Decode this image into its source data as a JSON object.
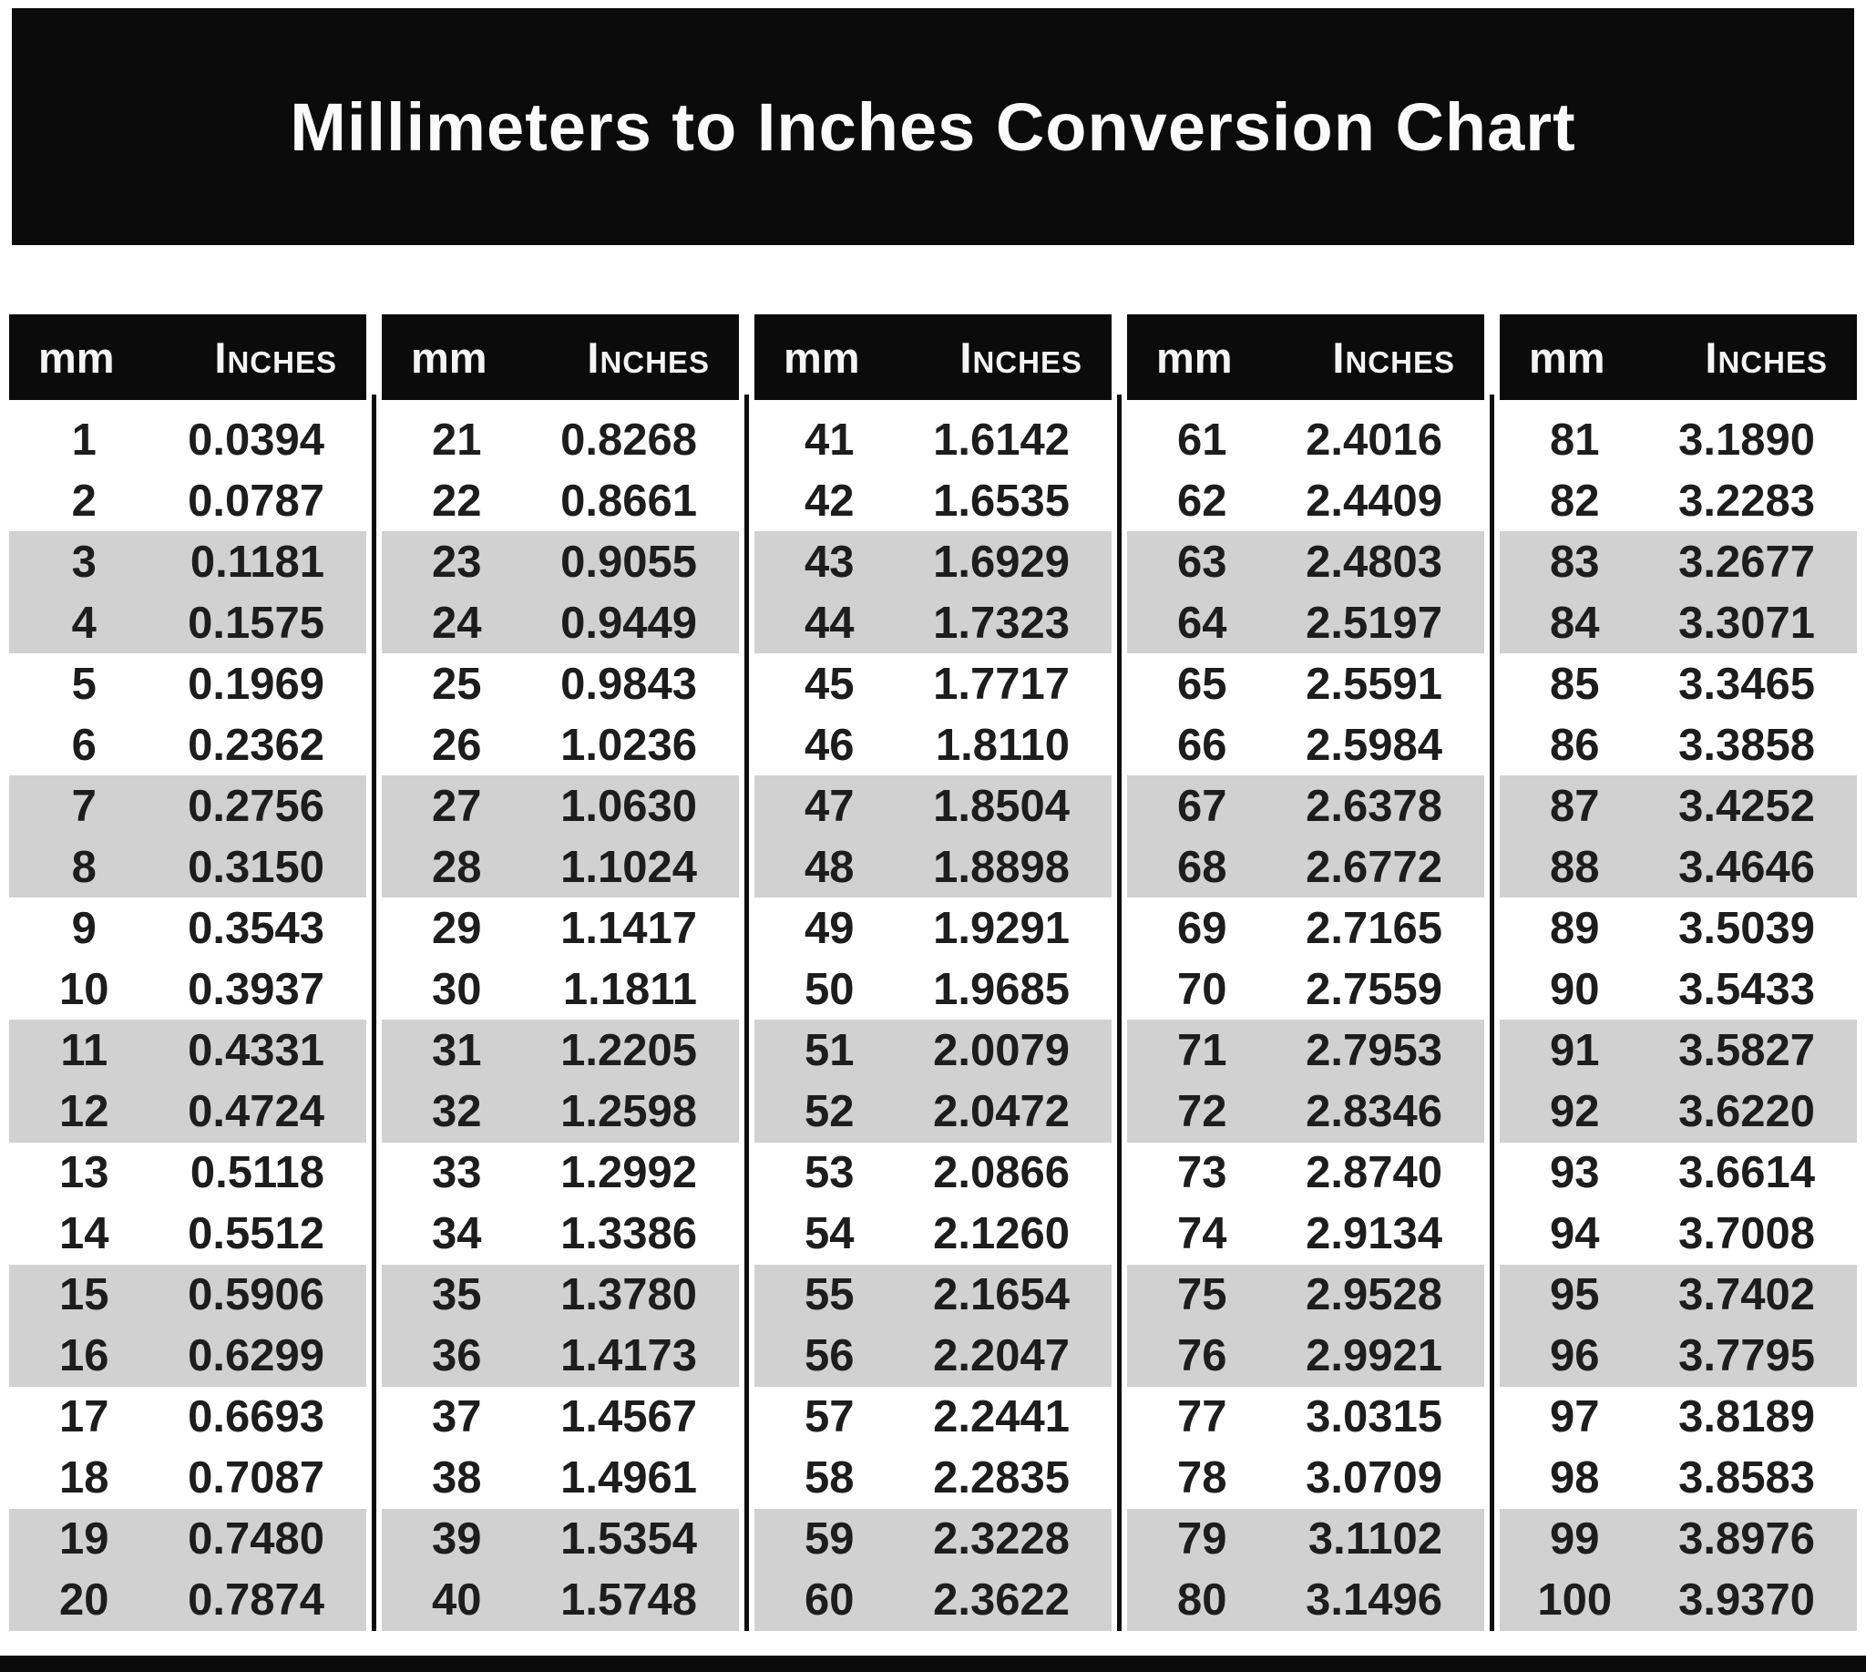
{
  "title": "Millimeters to Inches Conversion Chart",
  "column_headers": {
    "mm": "mm",
    "inches": "Inches"
  },
  "colors": {
    "header_bg": "#0b0b0b",
    "row_band": "#d1d1d1",
    "page_bg": "#ffffff",
    "title_text": "#fbfbfb",
    "body_text": "#1d1d1d"
  },
  "table": {
    "groups": [
      {
        "rows": [
          {
            "mm": "1",
            "in": "0.0394"
          },
          {
            "mm": "2",
            "in": "0.0787"
          },
          {
            "mm": "3",
            "in": "0.1181"
          },
          {
            "mm": "4",
            "in": "0.1575"
          },
          {
            "mm": "5",
            "in": "0.1969"
          },
          {
            "mm": "6",
            "in": "0.2362"
          },
          {
            "mm": "7",
            "in": "0.2756"
          },
          {
            "mm": "8",
            "in": "0.3150"
          },
          {
            "mm": "9",
            "in": "0.3543"
          },
          {
            "mm": "10",
            "in": "0.3937"
          },
          {
            "mm": "11",
            "in": "0.4331"
          },
          {
            "mm": "12",
            "in": "0.4724"
          },
          {
            "mm": "13",
            "in": "0.5118"
          },
          {
            "mm": "14",
            "in": "0.5512"
          },
          {
            "mm": "15",
            "in": "0.5906"
          },
          {
            "mm": "16",
            "in": "0.6299"
          },
          {
            "mm": "17",
            "in": "0.6693"
          },
          {
            "mm": "18",
            "in": "0.7087"
          },
          {
            "mm": "19",
            "in": "0.7480"
          },
          {
            "mm": "20",
            "in": "0.7874"
          }
        ]
      },
      {
        "rows": [
          {
            "mm": "21",
            "in": "0.8268"
          },
          {
            "mm": "22",
            "in": "0.8661"
          },
          {
            "mm": "23",
            "in": "0.9055"
          },
          {
            "mm": "24",
            "in": "0.9449"
          },
          {
            "mm": "25",
            "in": "0.9843"
          },
          {
            "mm": "26",
            "in": "1.0236"
          },
          {
            "mm": "27",
            "in": "1.0630"
          },
          {
            "mm": "28",
            "in": "1.1024"
          },
          {
            "mm": "29",
            "in": "1.1417"
          },
          {
            "mm": "30",
            "in": "1.1811"
          },
          {
            "mm": "31",
            "in": "1.2205"
          },
          {
            "mm": "32",
            "in": "1.2598"
          },
          {
            "mm": "33",
            "in": "1.2992"
          },
          {
            "mm": "34",
            "in": "1.3386"
          },
          {
            "mm": "35",
            "in": "1.3780"
          },
          {
            "mm": "36",
            "in": "1.4173"
          },
          {
            "mm": "37",
            "in": "1.4567"
          },
          {
            "mm": "38",
            "in": "1.4961"
          },
          {
            "mm": "39",
            "in": "1.5354"
          },
          {
            "mm": "40",
            "in": "1.5748"
          }
        ]
      },
      {
        "rows": [
          {
            "mm": "41",
            "in": "1.6142"
          },
          {
            "mm": "42",
            "in": "1.6535"
          },
          {
            "mm": "43",
            "in": "1.6929"
          },
          {
            "mm": "44",
            "in": "1.7323"
          },
          {
            "mm": "45",
            "in": "1.7717"
          },
          {
            "mm": "46",
            "in": "1.8110"
          },
          {
            "mm": "47",
            "in": "1.8504"
          },
          {
            "mm": "48",
            "in": "1.8898"
          },
          {
            "mm": "49",
            "in": "1.9291"
          },
          {
            "mm": "50",
            "in": "1.9685"
          },
          {
            "mm": "51",
            "in": "2.0079"
          },
          {
            "mm": "52",
            "in": "2.0472"
          },
          {
            "mm": "53",
            "in": "2.0866"
          },
          {
            "mm": "54",
            "in": "2.1260"
          },
          {
            "mm": "55",
            "in": "2.1654"
          },
          {
            "mm": "56",
            "in": "2.2047"
          },
          {
            "mm": "57",
            "in": "2.2441"
          },
          {
            "mm": "58",
            "in": "2.2835"
          },
          {
            "mm": "59",
            "in": "2.3228"
          },
          {
            "mm": "60",
            "in": "2.3622"
          }
        ]
      },
      {
        "rows": [
          {
            "mm": "61",
            "in": "2.4016"
          },
          {
            "mm": "62",
            "in": "2.4409"
          },
          {
            "mm": "63",
            "in": "2.4803"
          },
          {
            "mm": "64",
            "in": "2.5197"
          },
          {
            "mm": "65",
            "in": "2.5591"
          },
          {
            "mm": "66",
            "in": "2.5984"
          },
          {
            "mm": "67",
            "in": "2.6378"
          },
          {
            "mm": "68",
            "in": "2.6772"
          },
          {
            "mm": "69",
            "in": "2.7165"
          },
          {
            "mm": "70",
            "in": "2.7559"
          },
          {
            "mm": "71",
            "in": "2.7953"
          },
          {
            "mm": "72",
            "in": "2.8346"
          },
          {
            "mm": "73",
            "in": "2.8740"
          },
          {
            "mm": "74",
            "in": "2.9134"
          },
          {
            "mm": "75",
            "in": "2.9528"
          },
          {
            "mm": "76",
            "in": "2.9921"
          },
          {
            "mm": "77",
            "in": "3.0315"
          },
          {
            "mm": "78",
            "in": "3.0709"
          },
          {
            "mm": "79",
            "in": "3.1102"
          },
          {
            "mm": "80",
            "in": "3.1496"
          }
        ]
      },
      {
        "rows": [
          {
            "mm": "81",
            "in": "3.1890"
          },
          {
            "mm": "82",
            "in": "3.2283"
          },
          {
            "mm": "83",
            "in": "3.2677"
          },
          {
            "mm": "84",
            "in": "3.3071"
          },
          {
            "mm": "85",
            "in": "3.3465"
          },
          {
            "mm": "86",
            "in": "3.3858"
          },
          {
            "mm": "87",
            "in": "3.4252"
          },
          {
            "mm": "88",
            "in": "3.4646"
          },
          {
            "mm": "89",
            "in": "3.5039"
          },
          {
            "mm": "90",
            "in": "3.5433"
          },
          {
            "mm": "91",
            "in": "3.5827"
          },
          {
            "mm": "92",
            "in": "3.6220"
          },
          {
            "mm": "93",
            "in": "3.6614"
          },
          {
            "mm": "94",
            "in": "3.7008"
          },
          {
            "mm": "95",
            "in": "3.7402"
          },
          {
            "mm": "96",
            "in": "3.7795"
          },
          {
            "mm": "97",
            "in": "3.8189"
          },
          {
            "mm": "98",
            "in": "3.8583"
          },
          {
            "mm": "99",
            "in": "3.8976"
          },
          {
            "mm": "100",
            "in": "3.9370"
          }
        ]
      }
    ]
  }
}
